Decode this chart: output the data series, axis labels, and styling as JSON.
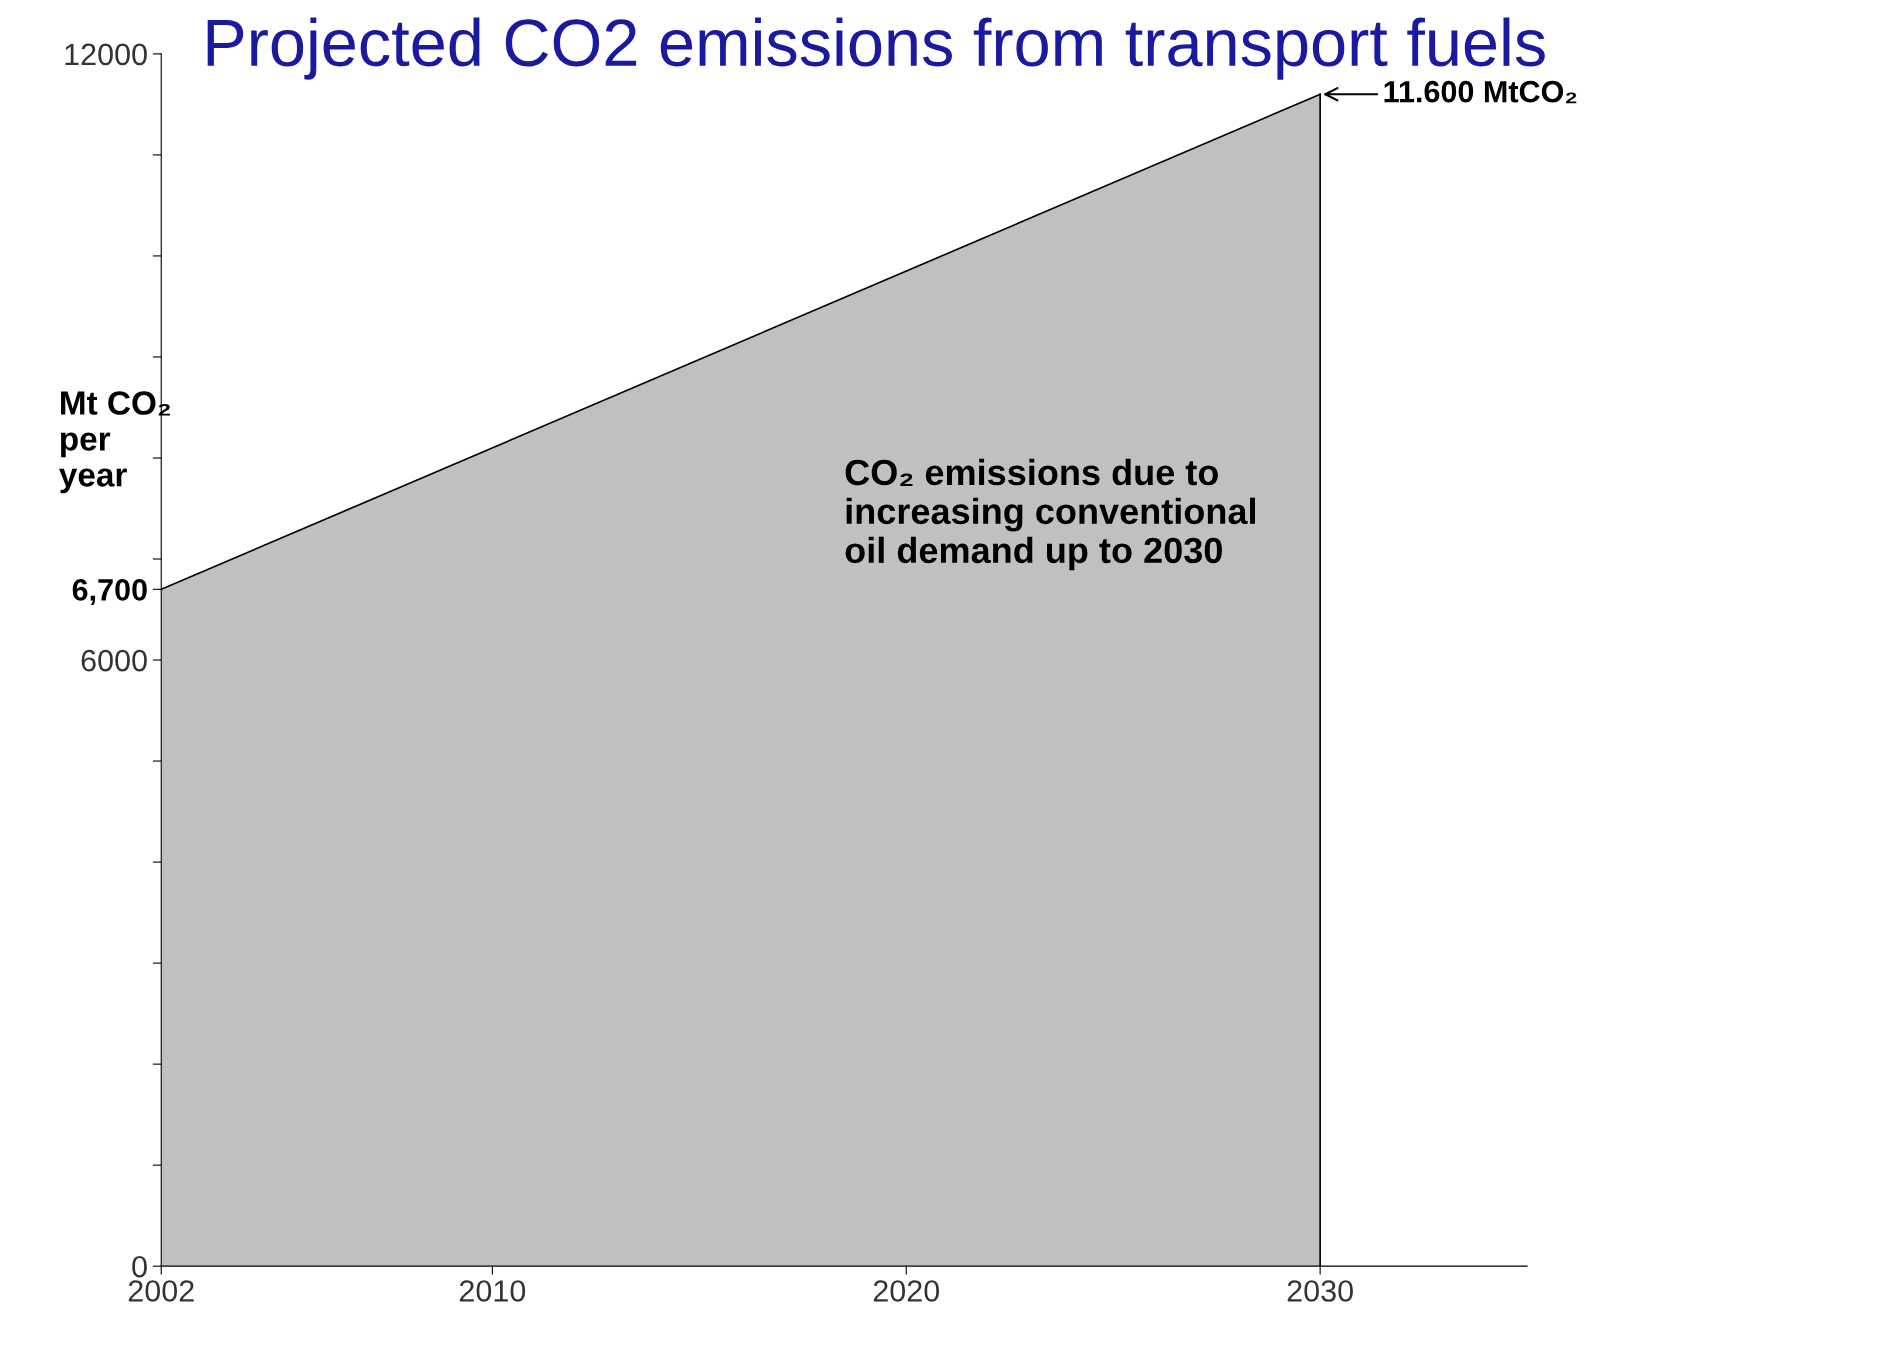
{
  "chart_data": {
    "type": "area",
    "title": "Projected CO2 emissions from transport fuels",
    "ylabel": "Mt CO₂\nper\nyear",
    "x": [
      2002,
      2030
    ],
    "series": [
      {
        "color": "#c0c0c0",
        "values": [
          6700,
          11600
        ]
      }
    ],
    "xlim": [
      2002,
      2035
    ],
    "xticks": [
      2002,
      2010,
      2020,
      2030
    ],
    "ylim": [
      0,
      12000
    ],
    "yticks": [
      0,
      {
        "value": 1000,
        "label": null
      },
      {
        "value": 2000,
        "label": null
      },
      {
        "value": 3000,
        "label": null
      },
      {
        "value": 4000,
        "label": null
      },
      {
        "value": 5000,
        "label": null
      },
      6000,
      {
        "value": 6700,
        "label": "6,700"
      },
      {
        "value": 7000,
        "label": null
      },
      {
        "value": 8000,
        "label": null
      },
      {
        "value": 9000,
        "label": null
      },
      {
        "value": 10000,
        "label": null
      },
      {
        "value": 11000,
        "label": null
      },
      12000
    ],
    "annotations": [
      {
        "text": "11.600 MtCO₂",
        "x": 2030,
        "y": 11600
      },
      "CO₂ emissions due to\nincreasing conventional\noil demand up to 2030"
    ],
    "legend": false
  }
}
